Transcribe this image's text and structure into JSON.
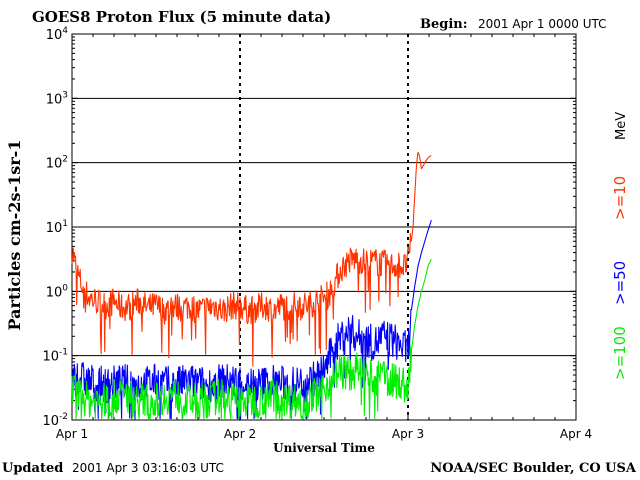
{
  "header": {
    "title": "GOES8 Proton Flux (5 minute data)",
    "begin_label": "Begin:",
    "begin_value": "2001 Apr 1 0000 UTC"
  },
  "footer": {
    "updated_label": "Updated",
    "updated_value": "2001 Apr  3 03:16:03 UTC",
    "credit": "NOAA/SEC Boulder, CO USA"
  },
  "legend": {
    "unit": "MeV",
    "items": [
      {
        "label": ">=10",
        "color": "#ff3300"
      },
      {
        "label": ">=50",
        "color": "#0000ff"
      },
      {
        "label": ">=100",
        "color": "#00ee00"
      }
    ]
  },
  "chart_data": {
    "type": "line",
    "title": "GOES8 Proton Flux (5 minute data)",
    "xlabel": "Universal Time",
    "ylabel": "Particles cm-2s-1sr-1",
    "y_scale": "log",
    "ylim": [
      0.01,
      10000
    ],
    "xlim_days": [
      0,
      3
    ],
    "x_ticks": [
      "Apr 1",
      "Apr 2",
      "Apr 3",
      "Apr 4"
    ],
    "y_ticks": [
      {
        "base": "10",
        "exp": "4"
      },
      {
        "base": "10",
        "exp": "3"
      },
      {
        "base": "10",
        "exp": "2"
      },
      {
        "base": "10",
        "exp": "1"
      },
      {
        "base": "10",
        "exp": "0"
      },
      {
        "base": "10",
        "exp": "-1"
      },
      {
        "base": "10",
        "exp": "-2"
      }
    ],
    "grid": "horizontal at each decade",
    "legend_position": "right",
    "series": [
      {
        "name": ">=10 MeV",
        "color": "#ff3300",
        "points": [
          [
            0.0,
            4.5
          ],
          [
            0.03,
            2.0
          ],
          [
            0.06,
            1.2
          ],
          [
            0.1,
            0.8
          ],
          [
            0.15,
            0.7
          ],
          [
            0.2,
            0.6
          ],
          [
            0.25,
            0.7
          ],
          [
            0.3,
            0.55
          ],
          [
            0.35,
            0.6
          ],
          [
            0.4,
            0.7
          ],
          [
            0.45,
            0.55
          ],
          [
            0.5,
            0.6
          ],
          [
            0.55,
            0.5
          ],
          [
            0.6,
            0.6
          ],
          [
            0.65,
            0.55
          ],
          [
            0.7,
            0.6
          ],
          [
            0.75,
            0.5
          ],
          [
            0.8,
            0.55
          ],
          [
            0.85,
            0.6
          ],
          [
            0.9,
            0.5
          ],
          [
            0.95,
            0.6
          ],
          [
            1.0,
            0.6
          ],
          [
            1.05,
            0.5
          ],
          [
            1.1,
            0.55
          ],
          [
            1.15,
            0.6
          ],
          [
            1.2,
            0.5
          ],
          [
            1.25,
            0.6
          ],
          [
            1.3,
            0.55
          ],
          [
            1.35,
            0.65
          ],
          [
            1.4,
            0.6
          ],
          [
            1.45,
            0.7
          ],
          [
            1.5,
            0.8
          ],
          [
            1.53,
            0.9
          ],
          [
            1.57,
            1.5
          ],
          [
            1.6,
            2.2
          ],
          [
            1.65,
            3.0
          ],
          [
            1.7,
            3.2
          ],
          [
            1.75,
            2.8
          ],
          [
            1.8,
            2.9
          ],
          [
            1.85,
            2.7
          ],
          [
            1.9,
            2.5
          ],
          [
            1.95,
            2.6
          ],
          [
            1.98,
            2.4
          ],
          [
            2.0,
            3.0
          ],
          [
            2.02,
            6.0
          ],
          [
            2.03,
            10
          ],
          [
            2.04,
            30
          ],
          [
            2.05,
            90
          ],
          [
            2.06,
            150
          ],
          [
            2.07,
            120
          ],
          [
            2.08,
            80
          ],
          [
            2.1,
            100
          ],
          [
            2.12,
            120
          ],
          [
            2.14,
            130
          ]
        ]
      },
      {
        "name": ">=50 MeV",
        "color": "#0000ff",
        "points": [
          [
            0.0,
            0.05
          ],
          [
            0.1,
            0.04
          ],
          [
            0.2,
            0.035
          ],
          [
            0.3,
            0.04
          ],
          [
            0.4,
            0.035
          ],
          [
            0.5,
            0.04
          ],
          [
            0.6,
            0.035
          ],
          [
            0.7,
            0.04
          ],
          [
            0.8,
            0.035
          ],
          [
            0.9,
            0.04
          ],
          [
            1.0,
            0.04
          ],
          [
            1.1,
            0.035
          ],
          [
            1.2,
            0.04
          ],
          [
            1.3,
            0.035
          ],
          [
            1.4,
            0.04
          ],
          [
            1.45,
            0.045
          ],
          [
            1.5,
            0.06
          ],
          [
            1.55,
            0.12
          ],
          [
            1.6,
            0.2
          ],
          [
            1.65,
            0.25
          ],
          [
            1.7,
            0.2
          ],
          [
            1.75,
            0.18
          ],
          [
            1.8,
            0.15
          ],
          [
            1.85,
            0.2
          ],
          [
            1.9,
            0.18
          ],
          [
            1.95,
            0.15
          ],
          [
            2.0,
            0.12
          ],
          [
            2.02,
            0.5
          ],
          [
            2.04,
            1.2
          ],
          [
            2.06,
            2.5
          ],
          [
            2.08,
            4.0
          ],
          [
            2.1,
            6.0
          ],
          [
            2.12,
            9.0
          ],
          [
            2.14,
            13
          ]
        ]
      },
      {
        "name": ">=100 MeV",
        "color": "#00ee00",
        "points": [
          [
            0.0,
            0.03
          ],
          [
            0.1,
            0.02
          ],
          [
            0.2,
            0.02
          ],
          [
            0.3,
            0.025
          ],
          [
            0.4,
            0.02
          ],
          [
            0.5,
            0.02
          ],
          [
            0.6,
            0.025
          ],
          [
            0.7,
            0.02
          ],
          [
            0.8,
            0.02
          ],
          [
            0.9,
            0.025
          ],
          [
            1.0,
            0.02
          ],
          [
            1.1,
            0.02
          ],
          [
            1.2,
            0.025
          ],
          [
            1.3,
            0.02
          ],
          [
            1.4,
            0.02
          ],
          [
            1.45,
            0.025
          ],
          [
            1.5,
            0.03
          ],
          [
            1.55,
            0.05
          ],
          [
            1.6,
            0.06
          ],
          [
            1.65,
            0.05
          ],
          [
            1.7,
            0.06
          ],
          [
            1.75,
            0.05
          ],
          [
            1.8,
            0.04
          ],
          [
            1.85,
            0.05
          ],
          [
            1.9,
            0.04
          ],
          [
            1.95,
            0.04
          ],
          [
            2.0,
            0.03
          ],
          [
            2.02,
            0.12
          ],
          [
            2.04,
            0.3
          ],
          [
            2.06,
            0.6
          ],
          [
            2.08,
            1.0
          ],
          [
            2.1,
            1.5
          ],
          [
            2.12,
            2.5
          ],
          [
            2.14,
            3.2
          ]
        ]
      }
    ]
  }
}
